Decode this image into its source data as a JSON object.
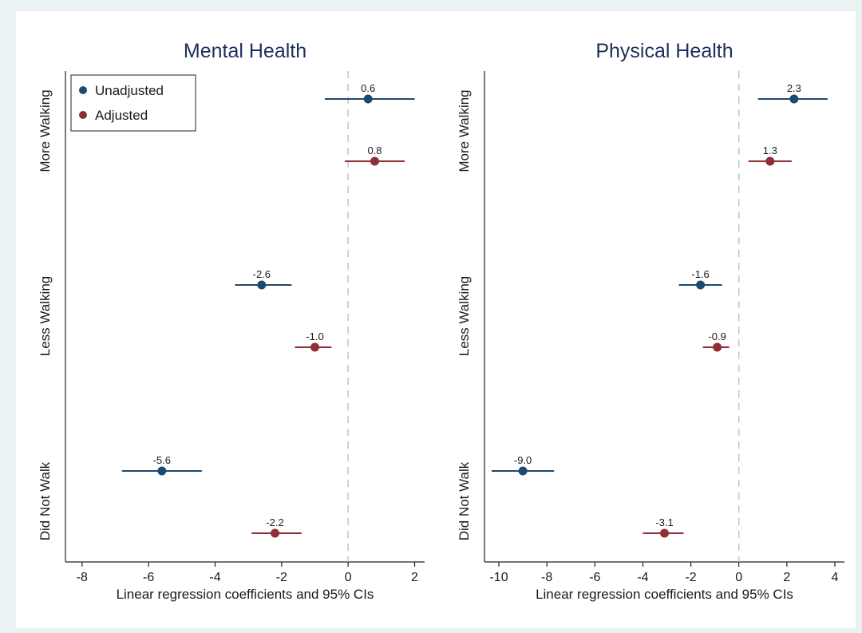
{
  "chart_data": [
    {
      "type": "forest",
      "title": "Mental Health",
      "xlabel": "Linear regression coefficients and 95% CIs",
      "xlim": [
        -8.5,
        2.3
      ],
      "xticks": [
        -8,
        -6,
        -4,
        -2,
        0,
        2
      ],
      "tick_labels": [
        "-8",
        "-6",
        "-4",
        "-2",
        "0",
        "2"
      ],
      "reference_line": 0,
      "categories": [
        "More Walking",
        "Less Walking",
        "Did Not Walk"
      ],
      "legend": {
        "show": true,
        "position": "top-left"
      },
      "series": [
        {
          "name": "Unadjusted",
          "color": "#1b4a72",
          "points": [
            {
              "category": "More Walking",
              "estimate": 0.6,
              "ci_low": -0.7,
              "ci_high": 2.0,
              "label": "0.6"
            },
            {
              "category": "Less Walking",
              "estimate": -2.6,
              "ci_low": -3.4,
              "ci_high": -1.7,
              "label": "-2.6"
            },
            {
              "category": "Did Not Walk",
              "estimate": -5.6,
              "ci_low": -6.8,
              "ci_high": -4.4,
              "label": "-5.6"
            }
          ]
        },
        {
          "name": "Adjusted",
          "color": "#8f2e34",
          "points": [
            {
              "category": "More Walking",
              "estimate": 0.8,
              "ci_low": -0.1,
              "ci_high": 1.7,
              "label": "0.8"
            },
            {
              "category": "Less Walking",
              "estimate": -1.0,
              "ci_low": -1.6,
              "ci_high": -0.5,
              "label": "-1.0"
            },
            {
              "category": "Did Not Walk",
              "estimate": -2.2,
              "ci_low": -2.9,
              "ci_high": -1.4,
              "label": "-2.2"
            }
          ]
        }
      ]
    },
    {
      "type": "forest",
      "title": "Physical Health",
      "xlabel": "Linear regression coefficients and 95% CIs",
      "xlim": [
        -10.6,
        4.4
      ],
      "xticks": [
        -10,
        -8,
        -6,
        -4,
        -2,
        0,
        2,
        4
      ],
      "tick_labels": [
        "-10",
        "-8",
        "-6",
        "-4",
        "-2",
        "0",
        "2",
        "4"
      ],
      "reference_line": 0,
      "categories": [
        "More Walking",
        "Less Walking",
        "Did Not Walk"
      ],
      "legend": {
        "show": false
      },
      "series": [
        {
          "name": "Unadjusted",
          "color": "#1b4a72",
          "points": [
            {
              "category": "More Walking",
              "estimate": 2.3,
              "ci_low": 0.8,
              "ci_high": 3.7,
              "label": "2.3"
            },
            {
              "category": "Less Walking",
              "estimate": -1.6,
              "ci_low": -2.5,
              "ci_high": -0.7,
              "label": "-1.6"
            },
            {
              "category": "Did Not Walk",
              "estimate": -9.0,
              "ci_low": -10.3,
              "ci_high": -7.7,
              "label": "-9.0"
            }
          ]
        },
        {
          "name": "Adjusted",
          "color": "#8f2e34",
          "points": [
            {
              "category": "More Walking",
              "estimate": 1.3,
              "ci_low": 0.4,
              "ci_high": 2.2,
              "label": "1.3"
            },
            {
              "category": "Less Walking",
              "estimate": -0.9,
              "ci_low": -1.5,
              "ci_high": -0.4,
              "label": "-0.9"
            },
            {
              "category": "Did Not Walk",
              "estimate": -3.1,
              "ci_low": -4.0,
              "ci_high": -2.3,
              "label": "-3.1"
            }
          ]
        }
      ]
    }
  ]
}
